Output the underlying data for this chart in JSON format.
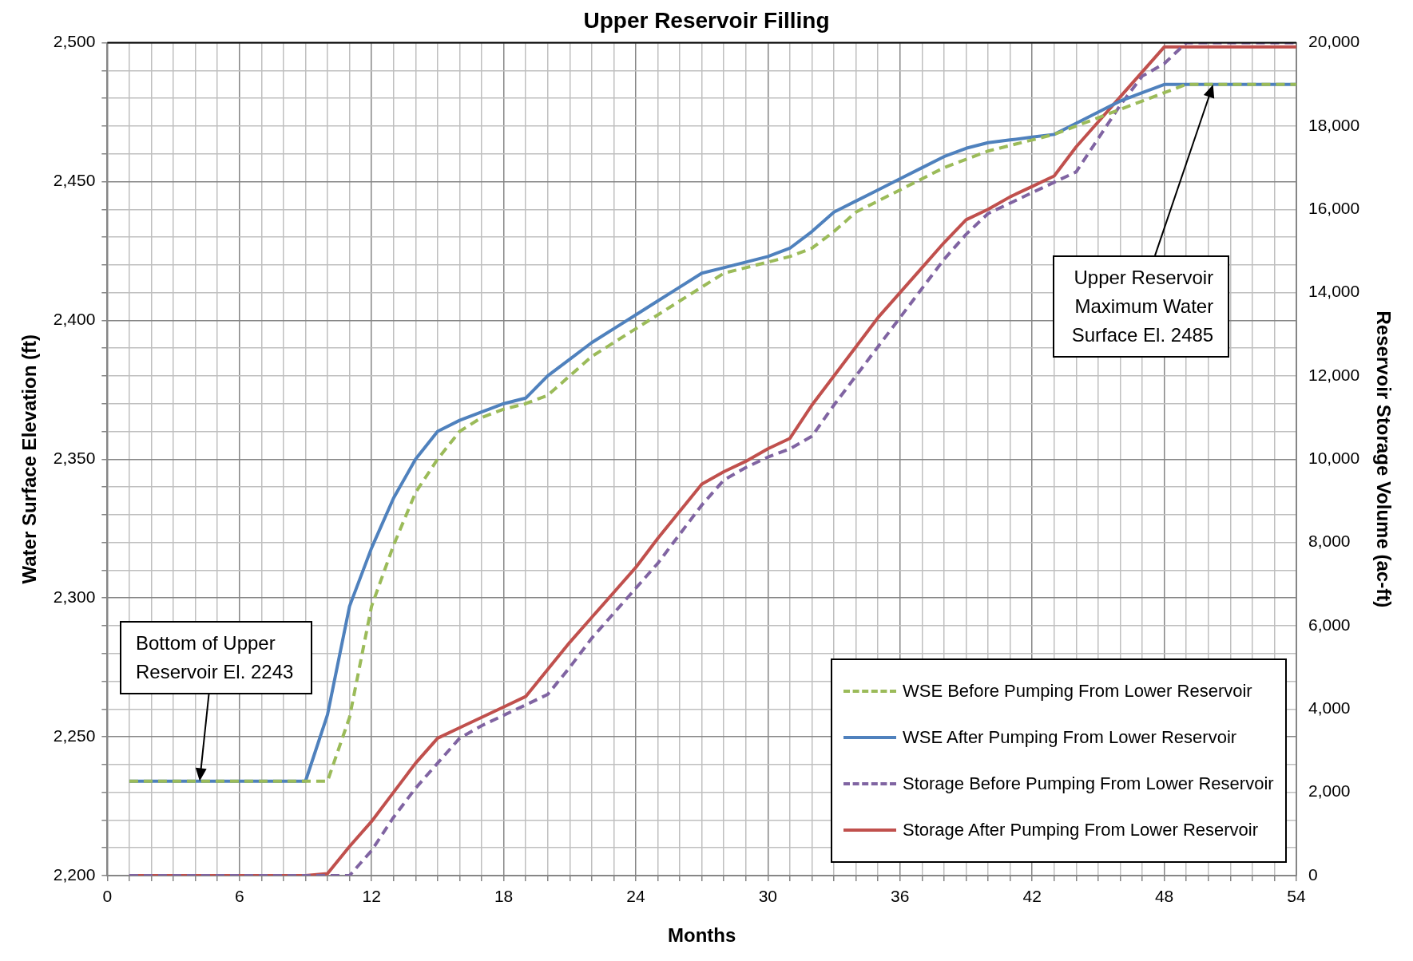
{
  "chart_data": {
    "type": "line",
    "title": "Upper Reservoir Filling",
    "xlabel": "Months",
    "ylabel": "Water Surface Elevation (ft)",
    "y2label": "Reservoir Storage Volume (ac-ft)",
    "x": [
      1,
      2,
      3,
      4,
      5,
      6,
      7,
      8,
      9,
      10,
      11,
      12,
      13,
      14,
      15,
      16,
      17,
      18,
      19,
      20,
      21,
      22,
      23,
      24,
      25,
      26,
      27,
      28,
      29,
      30,
      31,
      32,
      33,
      34,
      35,
      36,
      37,
      38,
      39,
      40,
      41,
      42,
      43,
      44,
      45,
      46,
      47,
      48,
      49,
      50,
      51,
      52,
      53,
      54
    ],
    "series": [
      {
        "name": "WSE Before Pumping From Lower Reservoir",
        "color": "#9bbb59",
        "line_style": "dashed",
        "values": [
          2234,
          2234,
          2234,
          2234,
          2234,
          2234,
          2234,
          2234,
          2234,
          2234,
          2257,
          2297,
          2319,
          2338,
          2350,
          2360,
          2365,
          2368,
          2370,
          2373,
          2380,
          2387,
          2392,
          2397,
          2402,
          2407,
          2412,
          2417,
          2419,
          2421,
          2423,
          2426,
          2432,
          2439,
          2443,
          2447,
          2451,
          2455,
          2458,
          2461,
          2463,
          2465,
          2467,
          2470,
          2473,
          2476,
          2479,
          2482,
          2485,
          2485,
          2485,
          2485,
          2485,
          2485
        ]
      },
      {
        "name": "WSE After Pumping From Lower Reservoir",
        "color": "#4f81bd",
        "line_style": "solid",
        "values": [
          2234,
          2234,
          2234,
          2234,
          2234,
          2234,
          2234,
          2234,
          2234,
          2258,
          2297,
          2318,
          2336,
          2350,
          2360,
          2364,
          2367,
          2370,
          2372,
          2380,
          2386,
          2392,
          2397,
          2402,
          2407,
          2412,
          2417,
          2419,
          2421,
          2423,
          2426,
          2432,
          2439,
          2443,
          2447,
          2451,
          2455,
          2459,
          2462,
          2464,
          2465,
          2466,
          2467,
          2471,
          2475,
          2479,
          2482,
          2485,
          2485,
          2485,
          2485,
          2485,
          2485,
          2485
        ]
      },
      {
        "name": "Storage Before Pumping From Lower Reservoir",
        "color": "#8064a2",
        "line_style": "dashed",
        "axis": "y2",
        "values": [
          0,
          0,
          0,
          0,
          0,
          0,
          0,
          0,
          0,
          0,
          0,
          600,
          1400,
          2100,
          2700,
          3300,
          3600,
          3850,
          4100,
          4350,
          5000,
          5700,
          6300,
          6900,
          7500,
          8200,
          8900,
          9500,
          9800,
          10050,
          10250,
          10550,
          11300,
          12000,
          12700,
          13400,
          14100,
          14800,
          15400,
          15900,
          16150,
          16400,
          16650,
          16900,
          17700,
          18500,
          19200,
          19500,
          20000,
          20000,
          20000,
          20000,
          20000,
          20000
        ]
      },
      {
        "name": "Storage After Pumping From Lower Reservoir",
        "color": "#c0504d",
        "line_style": "solid",
        "axis": "y2",
        "values": [
          0,
          0,
          0,
          0,
          0,
          0,
          0,
          0,
          0,
          50,
          700,
          1300,
          2000,
          2700,
          3300,
          3550,
          3800,
          4050,
          4300,
          4950,
          5600,
          6200,
          6800,
          7400,
          8100,
          8750,
          9400,
          9700,
          9950,
          10250,
          10500,
          11300,
          12000,
          12700,
          13400,
          14000,
          14600,
          15200,
          15750,
          16000,
          16300,
          16550,
          16800,
          17500,
          18100,
          18700,
          19300,
          19900,
          19900,
          19900,
          19900,
          19900,
          19900,
          19900
        ]
      }
    ],
    "xlim": [
      0,
      54
    ],
    "xticks": [
      0,
      {
        "value": 1,
        "label": null
      },
      {
        "value": 2,
        "label": null
      },
      {
        "value": 3,
        "label": null
      },
      {
        "value": 4,
        "label": null
      },
      {
        "value": 5,
        "label": null
      },
      6,
      {
        "value": 7,
        "label": null
      },
      {
        "value": 8,
        "label": null
      },
      {
        "value": 9,
        "label": null
      },
      {
        "value": 10,
        "label": null
      },
      {
        "value": 11,
        "label": null
      },
      12,
      {
        "value": 13,
        "label": null
      },
      {
        "value": 14,
        "label": null
      },
      {
        "value": 15,
        "label": null
      },
      {
        "value": 16,
        "label": null
      },
      {
        "value": 17,
        "label": null
      },
      18,
      {
        "value": 19,
        "label": null
      },
      {
        "value": 20,
        "label": null
      },
      {
        "value": 21,
        "label": null
      },
      {
        "value": 22,
        "label": null
      },
      {
        "value": 23,
        "label": null
      },
      24,
      {
        "value": 25,
        "label": null
      },
      {
        "value": 26,
        "label": null
      },
      {
        "value": 27,
        "label": null
      },
      {
        "value": 28,
        "label": null
      },
      {
        "value": 29,
        "label": null
      },
      30,
      {
        "value": 31,
        "label": null
      },
      {
        "value": 32,
        "label": null
      },
      {
        "value": 33,
        "label": null
      },
      {
        "value": 34,
        "label": null
      },
      {
        "value": 35,
        "label": null
      },
      36,
      {
        "value": 37,
        "label": null
      },
      {
        "value": 38,
        "label": null
      },
      {
        "value": 39,
        "label": null
      },
      {
        "value": 40,
        "label": null
      },
      {
        "value": 41,
        "label": null
      },
      42,
      {
        "value": 43,
        "label": null
      },
      {
        "value": 44,
        "label": null
      },
      {
        "value": 45,
        "label": null
      },
      {
        "value": 46,
        "label": null
      },
      {
        "value": 47,
        "label": null
      },
      48,
      {
        "value": 49,
        "label": null
      },
      {
        "value": 50,
        "label": null
      },
      {
        "value": 51,
        "label": null
      },
      {
        "value": 52,
        "label": null
      },
      {
        "value": 53,
        "label": null
      },
      54
    ],
    "ylim": [
      2200,
      2500
    ],
    "yticks": [
      {
        "value": 2200,
        "label": "2,200"
      },
      {
        "value": 2210,
        "label": null
      },
      {
        "value": 2220,
        "label": null
      },
      {
        "value": 2230,
        "label": null
      },
      {
        "value": 2240,
        "label": null
      },
      {
        "value": 2250,
        "label": "2,250"
      },
      {
        "value": 2260,
        "label": null
      },
      {
        "value": 2270,
        "label": null
      },
      {
        "value": 2280,
        "label": null
      },
      {
        "value": 2290,
        "label": null
      },
      {
        "value": 2300,
        "label": "2,300"
      },
      {
        "value": 2310,
        "label": null
      },
      {
        "value": 2320,
        "label": null
      },
      {
        "value": 2330,
        "label": null
      },
      {
        "value": 2340,
        "label": null
      },
      {
        "value": 2350,
        "label": "2,350"
      },
      {
        "value": 2360,
        "label": null
      },
      {
        "value": 2370,
        "label": null
      },
      {
        "value": 2380,
        "label": null
      },
      {
        "value": 2390,
        "label": null
      },
      {
        "value": 2400,
        "label": "2,400"
      },
      {
        "value": 2410,
        "label": null
      },
      {
        "value": 2420,
        "label": null
      },
      {
        "value": 2430,
        "label": null
      },
      {
        "value": 2440,
        "label": null
      },
      {
        "value": 2450,
        "label": "2,450"
      },
      {
        "value": 2460,
        "label": null
      },
      {
        "value": 2470,
        "label": null
      },
      {
        "value": 2480,
        "label": null
      },
      {
        "value": 2490,
        "label": null
      },
      {
        "value": 2500,
        "label": "2,500"
      }
    ],
    "y2lim": [
      0,
      20000
    ],
    "y2ticks": [
      0,
      {
        "value": 2000,
        "label": "2,000"
      },
      {
        "value": 4000,
        "label": "4,000"
      },
      {
        "value": 6000,
        "label": "6,000"
      },
      {
        "value": 8000,
        "label": "8,000"
      },
      {
        "value": 10000,
        "label": "10,000"
      },
      {
        "value": 12000,
        "label": "12,000"
      },
      {
        "value": 14000,
        "label": "14,000"
      },
      {
        "value": 16000,
        "label": "16,000"
      },
      {
        "value": 18000,
        "label": "18,000"
      },
      {
        "value": 20000,
        "label": "20,000"
      }
    ],
    "annotations": [
      "Bottom of Upper Reservoir El. 2243",
      "Upper Reservoir Maximum Water Surface El. 2485"
    ],
    "grid": true,
    "legend": "bottom right"
  }
}
